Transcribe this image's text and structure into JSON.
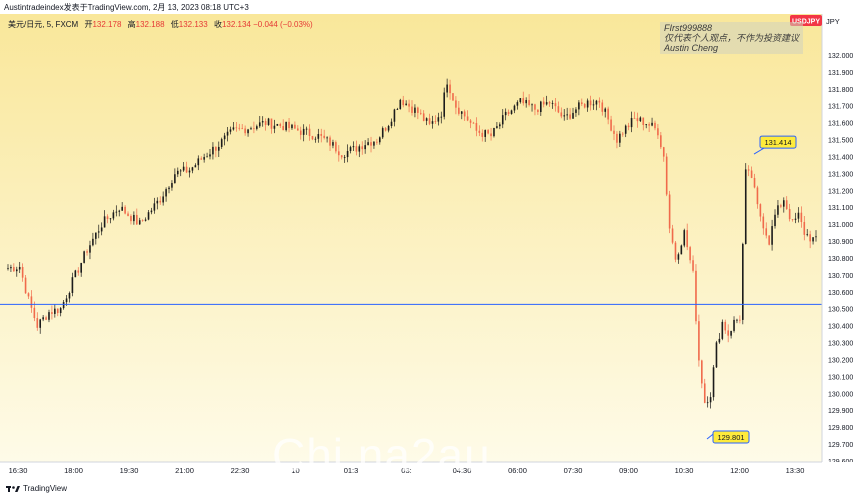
{
  "header": {
    "publish_info": "Austintradeindex发表于TradingView.com,  2月 13, 2023 08:18 UTC+3"
  },
  "legend": {
    "symbol": "美元/日元, 5, FXCM",
    "open_label": "开",
    "open": "132.178",
    "high_label": "高",
    "high": "132.188",
    "low_label": "低",
    "low": "132.133",
    "close_label": "收",
    "close": "132.134",
    "change": "−0.044 (−0.03%)"
  },
  "watermark": {
    "line1": "FIrst999888",
    "line2": "仅代表个人观点，不作为投资建议",
    "line3": "Austin Cheng"
  },
  "overlay_text": "Chi  na2au",
  "footer": {
    "brand": "TradingView"
  },
  "colors": {
    "up": "#26a69a",
    "down": "#ef5350",
    "candle_up_drawn": "#1b1b1b",
    "candle_down_drawn": "#f06a4b",
    "bg_top": "#f9e79a",
    "bg_bottom": "#fefbe8",
    "hline": "#2962ff",
    "tag": "#ffeb3b",
    "tag_border": "#2962ff",
    "symbol_badge": "#f23645"
  },
  "chart_data": {
    "type": "candlestick",
    "symbol_badge": "USDJPY",
    "currency_label": "JPY",
    "ylim": [
      129.6,
      132.1
    ],
    "y_ticks": [
      "132.000",
      "131.900",
      "131.800",
      "131.700",
      "131.600",
      "131.500",
      "131.400",
      "131.300",
      "131.200",
      "131.100",
      "131.000",
      "130.900",
      "130.800",
      "130.700",
      "130.600",
      "130.500",
      "130.400",
      "130.300",
      "130.200",
      "130.100",
      "130.000",
      "129.900",
      "129.800",
      "129.700",
      "129.600"
    ],
    "x_ticks": [
      "16:30",
      "18:00",
      "19:30",
      "21:00",
      "22:30",
      "10",
      "01:3",
      "03:",
      "04:30",
      "06:00",
      "07:30",
      "09:00",
      "10:30",
      "12:00",
      "13:30"
    ],
    "current_price": "130.967",
    "horizontal_line": "130.526",
    "annotations": [
      {
        "label": "131.414",
        "price": 131.414
      },
      {
        "label": "129.801",
        "price": 129.801
      }
    ],
    "anchors": [
      [
        0,
        130.74
      ],
      [
        4,
        130.75
      ],
      [
        7,
        130.55
      ],
      [
        10,
        130.4
      ],
      [
        14,
        130.48
      ],
      [
        18,
        130.5
      ],
      [
        22,
        130.66
      ],
      [
        27,
        130.85
      ],
      [
        32,
        131.0
      ],
      [
        38,
        131.1
      ],
      [
        45,
        131.0
      ],
      [
        52,
        131.15
      ],
      [
        57,
        131.3
      ],
      [
        62,
        131.32
      ],
      [
        67,
        131.4
      ],
      [
        72,
        131.47
      ],
      [
        77,
        131.55
      ],
      [
        82,
        131.57
      ],
      [
        88,
        131.6
      ],
      [
        94,
        131.58
      ],
      [
        100,
        131.55
      ],
      [
        106,
        131.52
      ],
      [
        110,
        131.48
      ],
      [
        114,
        131.42
      ],
      [
        118,
        131.44
      ],
      [
        122,
        131.48
      ],
      [
        126,
        131.5
      ],
      [
        130,
        131.6
      ],
      [
        134,
        131.74
      ],
      [
        140,
        131.66
      ],
      [
        144,
        131.58
      ],
      [
        148,
        131.66
      ],
      [
        150,
        131.85
      ],
      [
        153,
        131.7
      ],
      [
        157,
        131.62
      ],
      [
        160,
        131.55
      ],
      [
        165,
        131.52
      ],
      [
        170,
        131.64
      ],
      [
        175,
        131.72
      ],
      [
        180,
        131.68
      ],
      [
        185,
        131.72
      ],
      [
        190,
        131.62
      ],
      [
        194,
        131.68
      ],
      [
        198,
        131.72
      ],
      [
        202,
        131.73
      ],
      [
        206,
        131.58
      ],
      [
        208,
        131.5
      ],
      [
        210,
        131.55
      ],
      [
        214,
        131.62
      ],
      [
        218,
        131.6
      ],
      [
        222,
        131.55
      ],
      [
        224,
        131.4
      ],
      [
        226,
        130.98
      ],
      [
        228,
        130.8
      ],
      [
        231,
        130.95
      ],
      [
        234,
        130.7
      ],
      [
        236,
        130.2
      ],
      [
        238,
        129.95
      ],
      [
        240,
        130.0
      ],
      [
        242,
        130.28
      ],
      [
        244,
        130.42
      ],
      [
        246,
        130.35
      ],
      [
        248,
        130.42
      ],
      [
        250,
        130.45
      ],
      [
        252,
        131.3
      ],
      [
        254,
        131.28
      ],
      [
        256,
        131.1
      ],
      [
        258,
        131.0
      ],
      [
        260,
        130.9
      ],
      [
        262,
        131.05
      ],
      [
        265,
        131.15
      ],
      [
        268,
        131.0
      ],
      [
        270,
        131.05
      ],
      [
        272,
        130.95
      ],
      [
        274,
        130.92
      ],
      [
        276,
        130.9
      ]
    ]
  }
}
